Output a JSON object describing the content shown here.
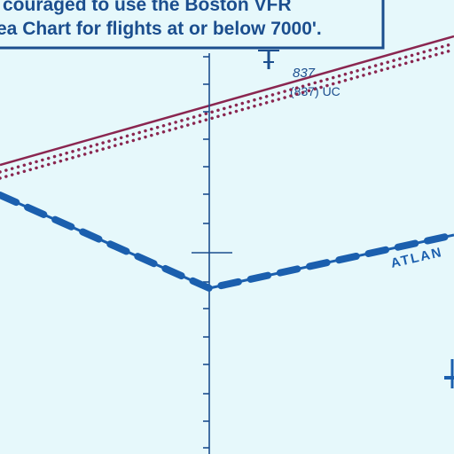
{
  "map": {
    "colors": {
      "background": "#e6f8fb",
      "note_blue": "#1b4e8e",
      "boundary_maroon": "#8a2650",
      "airway_blue": "#1b5fae"
    },
    "note": {
      "line1": "couraged to use the Boston VFR",
      "line2": "ea Chart for flights at or below 7000'."
    },
    "altitude_label": {
      "top": "837",
      "bottom": "(837) UC"
    },
    "region_label": "ATLAN"
  }
}
